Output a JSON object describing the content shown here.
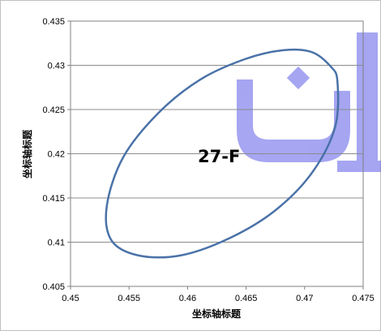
{
  "chart_data": {
    "type": "line",
    "title": "",
    "xlabel": "坐标轴标题",
    "ylabel": "坐标轴标题",
    "xlim": [
      0.45,
      0.475
    ],
    "ylim": [
      0.405,
      0.435
    ],
    "x_ticks": [
      "0.45",
      "0.455",
      "0.46",
      "0.465",
      "0.47",
      "0.475"
    ],
    "y_ticks": [
      "0.405",
      "0.41",
      "0.415",
      "0.42",
      "0.425",
      "0.43",
      "0.435"
    ],
    "grid": "horizontal",
    "annotation": "27-F",
    "series": [
      {
        "color": "#4a72a8",
        "shape": "closed-curve",
        "x": [
          0.4728,
          0.4722,
          0.4706,
          0.4681,
          0.4649,
          0.4611,
          0.4575,
          0.4545,
          0.4531,
          0.4535,
          0.4558,
          0.4594,
          0.4635,
          0.4674,
          0.4706,
          0.4726,
          0.4728
        ],
        "y": [
          0.4282,
          0.4299,
          0.4315,
          0.4317,
          0.4307,
          0.4284,
          0.4246,
          0.4196,
          0.4141,
          0.4102,
          0.4085,
          0.4085,
          0.4104,
          0.4135,
          0.4178,
          0.423,
          0.4282
        ]
      }
    ]
  }
}
